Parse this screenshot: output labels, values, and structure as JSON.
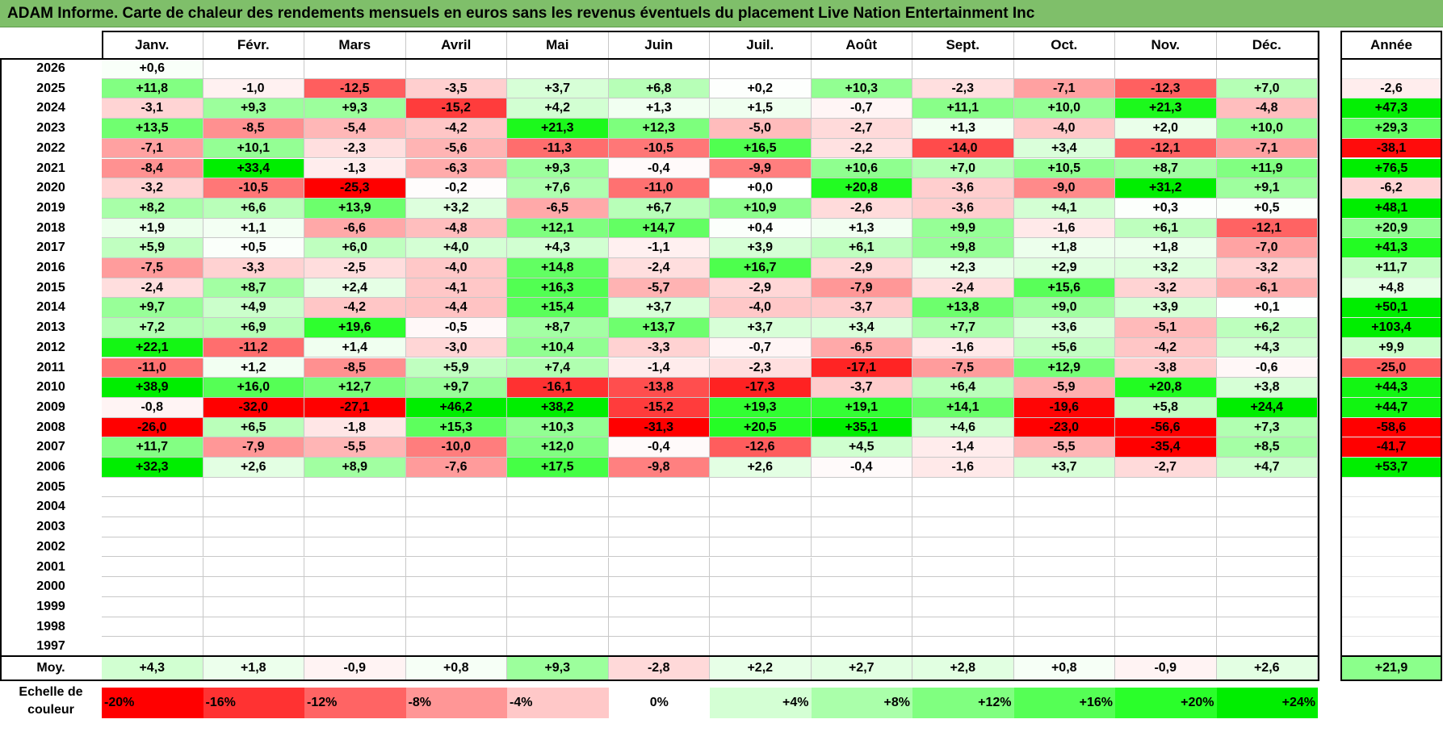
{
  "title": "ADAM Informe. Carte de chaleur des rendements mensuels en euros sans les revenus éventuels du placement Live Nation Entertainment Inc",
  "chart_data": {
    "type": "heatmap",
    "title": "ADAM Informe. Carte de chaleur des rendements mensuels en euros sans les revenus éventuels du placement Live Nation Entertainment Inc",
    "months": [
      "Janv.",
      "Févr.",
      "Mars",
      "Avril",
      "Mai",
      "Juin",
      "Juil.",
      "Août",
      "Sept.",
      "Oct.",
      "Nov.",
      "Déc."
    ],
    "year_label": "Année",
    "avg_label": "Moy.",
    "rows": [
      {
        "year": "2026",
        "values": [
          "+0,6",
          "",
          "",
          "",
          "",
          "",
          "",
          "",
          "",
          "",
          "",
          ""
        ],
        "annual": ""
      },
      {
        "year": "2025",
        "values": [
          "+11,8",
          "-1,0",
          "-12,5",
          "-3,5",
          "+3,7",
          "+6,8",
          "+0,2",
          "+10,3",
          "-2,3",
          "-7,1",
          "-12,3",
          "+7,0"
        ],
        "annual": "-2,6"
      },
      {
        "year": "2024",
        "values": [
          "-3,1",
          "+9,3",
          "+9,3",
          "-15,2",
          "+4,2",
          "+1,3",
          "+1,5",
          "-0,7",
          "+11,1",
          "+10,0",
          "+21,3",
          "-4,8"
        ],
        "annual": "+47,3"
      },
      {
        "year": "2023",
        "values": [
          "+13,5",
          "-8,5",
          "-5,4",
          "-4,2",
          "+21,3",
          "+12,3",
          "-5,0",
          "-2,7",
          "+1,3",
          "-4,0",
          "+2,0",
          "+10,0"
        ],
        "annual": "+29,3"
      },
      {
        "year": "2022",
        "values": [
          "-7,1",
          "+10,1",
          "-2,3",
          "-5,6",
          "-11,3",
          "-10,5",
          "+16,5",
          "-2,2",
          "-14,0",
          "+3,4",
          "-12,1",
          "-7,1"
        ],
        "annual": "-38,1"
      },
      {
        "year": "2021",
        "values": [
          "-8,4",
          "+33,4",
          "-1,3",
          "-6,3",
          "+9,3",
          "-0,4",
          "-9,9",
          "+10,6",
          "+7,0",
          "+10,5",
          "+8,7",
          "+11,9"
        ],
        "annual": "+76,5"
      },
      {
        "year": "2020",
        "values": [
          "-3,2",
          "-10,5",
          "-25,3",
          "-0,2",
          "+7,6",
          "-11,0",
          "+0,0",
          "+20,8",
          "-3,6",
          "-9,0",
          "+31,2",
          "+9,1"
        ],
        "annual": "-6,2"
      },
      {
        "year": "2019",
        "values": [
          "+8,2",
          "+6,6",
          "+13,9",
          "+3,2",
          "-6,5",
          "+6,7",
          "+10,9",
          "-2,6",
          "-3,6",
          "+4,1",
          "+0,3",
          "+0,5"
        ],
        "annual": "+48,1"
      },
      {
        "year": "2018",
        "values": [
          "+1,9",
          "+1,1",
          "-6,6",
          "-4,8",
          "+12,1",
          "+14,7",
          "+0,4",
          "+1,3",
          "+9,9",
          "-1,6",
          "+6,1",
          "-12,1"
        ],
        "annual": "+20,9"
      },
      {
        "year": "2017",
        "values": [
          "+5,9",
          "+0,5",
          "+6,0",
          "+4,0",
          "+4,3",
          "-1,1",
          "+3,9",
          "+6,1",
          "+9,8",
          "+1,8",
          "+1,8",
          "-7,0"
        ],
        "annual": "+41,3"
      },
      {
        "year": "2016",
        "values": [
          "-7,5",
          "-3,3",
          "-2,5",
          "-4,0",
          "+14,8",
          "-2,4",
          "+16,7",
          "-2,9",
          "+2,3",
          "+2,9",
          "+3,2",
          "-3,2"
        ],
        "annual": "+11,7"
      },
      {
        "year": "2015",
        "values": [
          "-2,4",
          "+8,7",
          "+2,4",
          "-4,1",
          "+16,3",
          "-5,7",
          "-2,9",
          "-7,9",
          "-2,4",
          "+15,6",
          "-3,2",
          "-6,1"
        ],
        "annual": "+4,8"
      },
      {
        "year": "2014",
        "values": [
          "+9,7",
          "+4,9",
          "-4,2",
          "-4,4",
          "+15,4",
          "+3,7",
          "-4,0",
          "-3,7",
          "+13,8",
          "+9,0",
          "+3,9",
          "+0,1"
        ],
        "annual": "+50,1"
      },
      {
        "year": "2013",
        "values": [
          "+7,2",
          "+6,9",
          "+19,6",
          "-0,5",
          "+8,7",
          "+13,7",
          "+3,7",
          "+3,4",
          "+7,7",
          "+3,6",
          "-5,1",
          "+6,2"
        ],
        "annual": "+103,4"
      },
      {
        "year": "2012",
        "values": [
          "+22,1",
          "-11,2",
          "+1,4",
          "-3,0",
          "+10,4",
          "-3,3",
          "-0,7",
          "-6,5",
          "-1,6",
          "+5,6",
          "-4,2",
          "+4,3"
        ],
        "annual": "+9,9"
      },
      {
        "year": "2011",
        "values": [
          "-11,0",
          "+1,2",
          "-8,5",
          "+5,9",
          "+7,4",
          "-1,4",
          "-2,3",
          "-17,1",
          "-7,5",
          "+12,9",
          "-3,8",
          "-0,6"
        ],
        "annual": "-25,0"
      },
      {
        "year": "2010",
        "values": [
          "+38,9",
          "+16,0",
          "+12,7",
          "+9,7",
          "-16,1",
          "-13,8",
          "-17,3",
          "-3,7",
          "+6,4",
          "-5,9",
          "+20,8",
          "+3,8"
        ],
        "annual": "+44,3"
      },
      {
        "year": "2009",
        "values": [
          "-0,8",
          "-32,0",
          "-27,1",
          "+46,2",
          "+38,2",
          "-15,2",
          "+19,3",
          "+19,1",
          "+14,1",
          "-19,6",
          "+5,8",
          "+24,4"
        ],
        "annual": "+44,7"
      },
      {
        "year": "2008",
        "values": [
          "-26,0",
          "+6,5",
          "-1,8",
          "+15,3",
          "+10,3",
          "-31,3",
          "+20,5",
          "+35,1",
          "+4,6",
          "-23,0",
          "-56,6",
          "+7,3"
        ],
        "annual": "-58,6"
      },
      {
        "year": "2007",
        "values": [
          "+11,7",
          "-7,9",
          "-5,5",
          "-10,0",
          "+12,0",
          "-0,4",
          "-12,6",
          "+4,5",
          "-1,4",
          "-5,5",
          "-35,4",
          "+8,5"
        ],
        "annual": "-41,7"
      },
      {
        "year": "2006",
        "values": [
          "+32,3",
          "+2,6",
          "+8,9",
          "-7,6",
          "+17,5",
          "-9,8",
          "+2,6",
          "-0,4",
          "-1,6",
          "+3,7",
          "-2,7",
          "+4,7"
        ],
        "annual": "+53,7"
      },
      {
        "year": "2005",
        "values": [
          "",
          "",
          "",
          "",
          "",
          "",
          "",
          "",
          "",
          "",
          "",
          ""
        ],
        "annual": ""
      },
      {
        "year": "2004",
        "values": [
          "",
          "",
          "",
          "",
          "",
          "",
          "",
          "",
          "",
          "",
          "",
          ""
        ],
        "annual": ""
      },
      {
        "year": "2003",
        "values": [
          "",
          "",
          "",
          "",
          "",
          "",
          "",
          "",
          "",
          "",
          "",
          ""
        ],
        "annual": ""
      },
      {
        "year": "2002",
        "values": [
          "",
          "",
          "",
          "",
          "",
          "",
          "",
          "",
          "",
          "",
          "",
          ""
        ],
        "annual": ""
      },
      {
        "year": "2001",
        "values": [
          "",
          "",
          "",
          "",
          "",
          "",
          "",
          "",
          "",
          "",
          "",
          ""
        ],
        "annual": ""
      },
      {
        "year": "2000",
        "values": [
          "",
          "",
          "",
          "",
          "",
          "",
          "",
          "",
          "",
          "",
          "",
          ""
        ],
        "annual": ""
      },
      {
        "year": "1999",
        "values": [
          "",
          "",
          "",
          "",
          "",
          "",
          "",
          "",
          "",
          "",
          "",
          ""
        ],
        "annual": ""
      },
      {
        "year": "1998",
        "values": [
          "",
          "",
          "",
          "",
          "",
          "",
          "",
          "",
          "",
          "",
          "",
          ""
        ],
        "annual": ""
      },
      {
        "year": "1997",
        "values": [
          "",
          "",
          "",
          "",
          "",
          "",
          "",
          "",
          "",
          "",
          "",
          ""
        ],
        "annual": ""
      }
    ],
    "averages": {
      "values": [
        "+4,3",
        "+1,8",
        "-0,9",
        "+0,8",
        "+9,3",
        "-2,8",
        "+2,2",
        "+2,7",
        "+2,8",
        "+0,8",
        "-0,9",
        "+2,6"
      ],
      "annual": "+21,9"
    },
    "legend": {
      "label_line1": "Echelle de",
      "label_line2": "couleur",
      "stops": [
        {
          "label": "-20%",
          "value": -20,
          "color": "#ff0000"
        },
        {
          "label": "-16%",
          "value": -16,
          "color": "#ff3232"
        },
        {
          "label": "-12%",
          "value": -12,
          "color": "#ff6464"
        },
        {
          "label": "-8%",
          "value": -8,
          "color": "#ff9696"
        },
        {
          "label": "-4%",
          "value": -4,
          "color": "#ffc8c8"
        },
        {
          "label": "0%",
          "value": 0,
          "color": "#ffffff"
        },
        {
          "label": "+4%",
          "value": 4,
          "color": "#d4ffd4"
        },
        {
          "label": "+8%",
          "value": 8,
          "color": "#aaffaa"
        },
        {
          "label": "+12%",
          "value": 12,
          "color": "#80ff80"
        },
        {
          "label": "+16%",
          "value": 16,
          "color": "#55ff55"
        },
        {
          "label": "+20%",
          "value": 20,
          "color": "#2aff2a"
        },
        {
          "label": "+24%",
          "value": 24,
          "color": "#00ee00"
        }
      ]
    }
  }
}
